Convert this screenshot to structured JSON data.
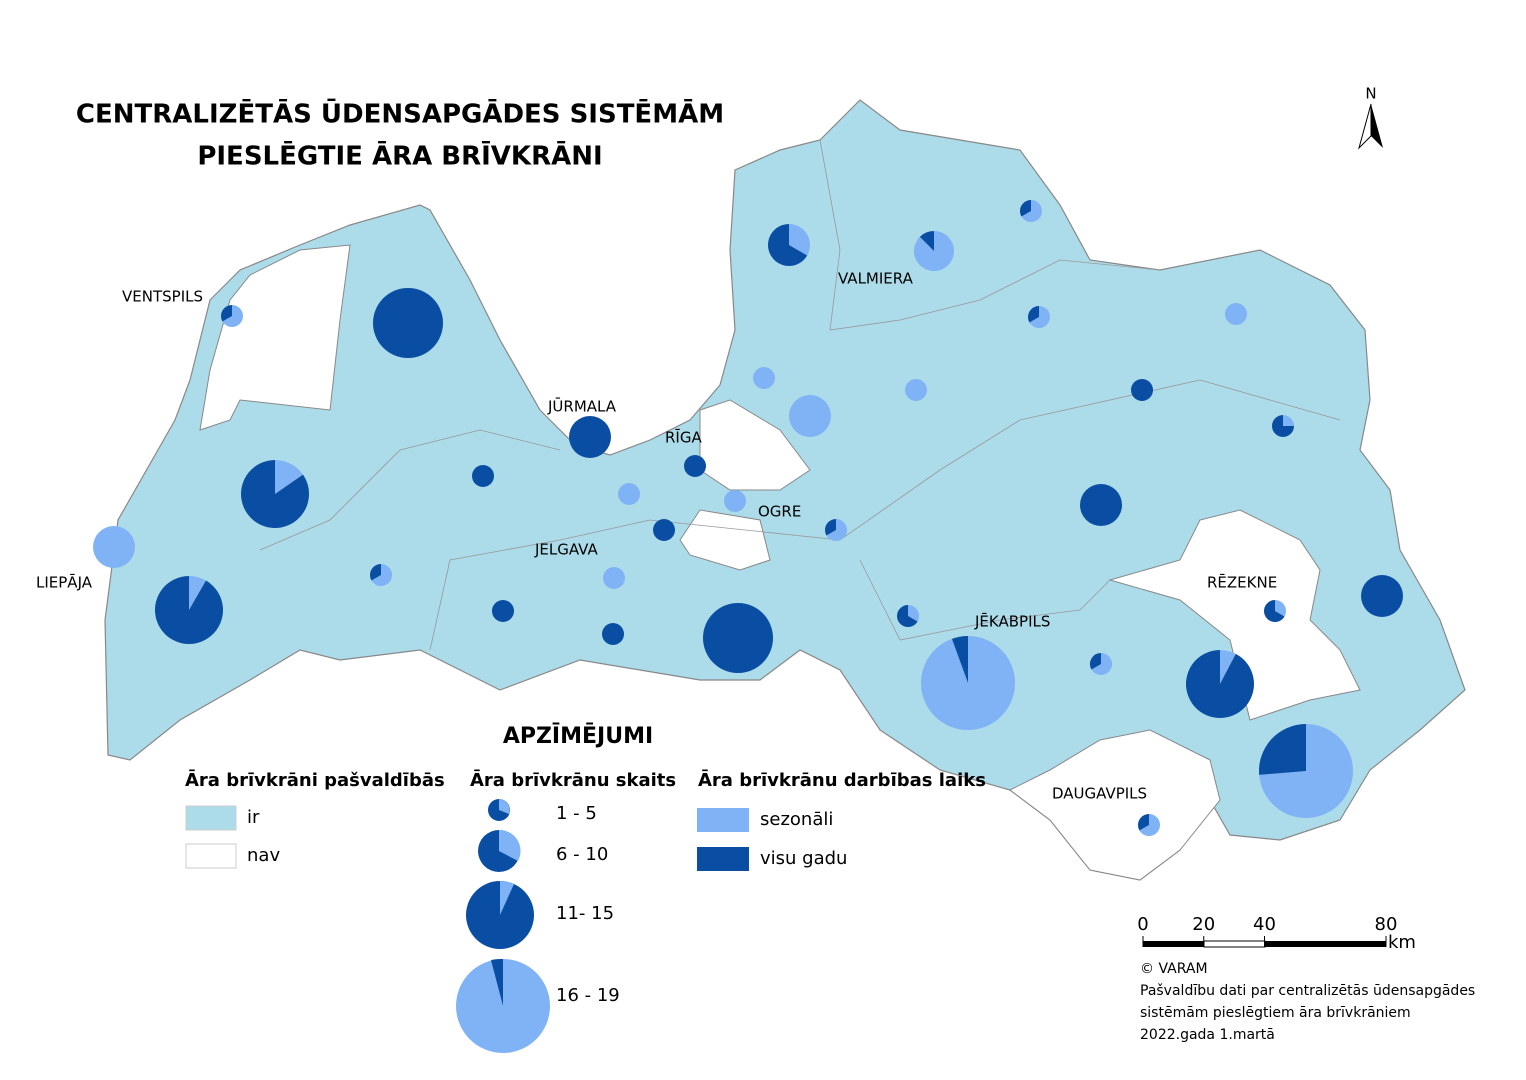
{
  "title": [
    "CENTRALIZĒTĀS ŪDENSAPGĀDES SISTĒMĀM",
    "PIESLĒGTIE ĀRA BRĪVKRĀNI"
  ],
  "north": "N",
  "cities": [
    "VENTSPILS",
    "VALMIERA",
    "JŪRMALA",
    "RĪGA",
    "OGRE",
    "JELGAVA",
    "LIEPĀJA",
    "RĒZEKNE",
    "JĒKABPILS",
    "DAUGAVPILS"
  ],
  "legend": {
    "heading": "APZĪMĒJUMI",
    "presence": {
      "title": "Āra brīvkrāni pašvaldībās",
      "items": [
        "ir",
        "nav"
      ],
      "colors": [
        "#acdbe9",
        "#ffffff"
      ]
    },
    "count": {
      "title": "Āra brīvkrānu skaits",
      "items": [
        "1 - 5",
        "6 - 10",
        "11- 15",
        "16 - 19"
      ]
    },
    "operation": {
      "title": "Āra brīvkrānu darbības laiks",
      "items": [
        "sezonāli",
        "visu gadu"
      ],
      "colors": [
        "#7fb3f5",
        "#0a4ea4"
      ]
    }
  },
  "pies": [
    {
      "seasonal": 2,
      "year_round": 1
    },
    {
      "seasonal": 0,
      "year_round": 13
    },
    {
      "seasonal": 3,
      "year_round": 6
    },
    {
      "seasonal": 7,
      "year_round": 1
    },
    {
      "seasonal": 2,
      "year_round": 1
    },
    {
      "seasonal": 2,
      "year_round": 1
    },
    {
      "seasonal": 2,
      "year_round": 0
    },
    {
      "seasonal": 1,
      "year_round": 0
    },
    {
      "seasonal": 8,
      "year_round": 0
    },
    {
      "seasonal": 1,
      "year_round": 0
    },
    {
      "seasonal": 0,
      "year_round": 2
    },
    {
      "seasonal": 1,
      "year_round": 3
    },
    {
      "seasonal": 0,
      "year_round": 8
    },
    {
      "seasonal": 0,
      "year_round": 2
    },
    {
      "seasonal": 0,
      "year_round": 1
    },
    {
      "seasonal": 2,
      "year_round": 11
    },
    {
      "seasonal": 6,
      "year_round": 0
    },
    {
      "seasonal": 1,
      "year_round": 0
    },
    {
      "seasonal": 2,
      "year_round": 0
    },
    {
      "seasonal": 0,
      "year_round": 2
    },
    {
      "seasonal": 2,
      "year_round": 1
    },
    {
      "seasonal": 0,
      "year_round": 7
    },
    {
      "seasonal": 2,
      "year_round": 1
    },
    {
      "seasonal": 1,
      "year_round": 0
    },
    {
      "seasonal": 1,
      "year_round": 11
    },
    {
      "seasonal": 0,
      "year_round": 2
    },
    {
      "seasonal": 0,
      "year_round": 2
    },
    {
      "seasonal": 0,
      "year_round": 14
    },
    {
      "seasonal": 1,
      "year_round": 2
    },
    {
      "seasonal": 17,
      "year_round": 1
    },
    {
      "seasonal": 2,
      "year_round": 1
    },
    {
      "seasonal": 1,
      "year_round": 12
    },
    {
      "seasonal": 1,
      "year_round": 2
    },
    {
      "seasonal": 0,
      "year_round": 6
    },
    {
      "seasonal": 14,
      "year_round": 5
    },
    {
      "seasonal": 2,
      "year_round": 1
    }
  ],
  "scale": {
    "ticks": [
      0,
      20,
      40,
      80
    ],
    "unit": "km"
  },
  "credits": [
    "© VARAM",
    "Pašvaldību dati par centralizētās ūdensapgādes",
    "sistēmām pieslēgtiem āra brīvkrāniem",
    " 2022.gada 1.martā"
  ]
}
